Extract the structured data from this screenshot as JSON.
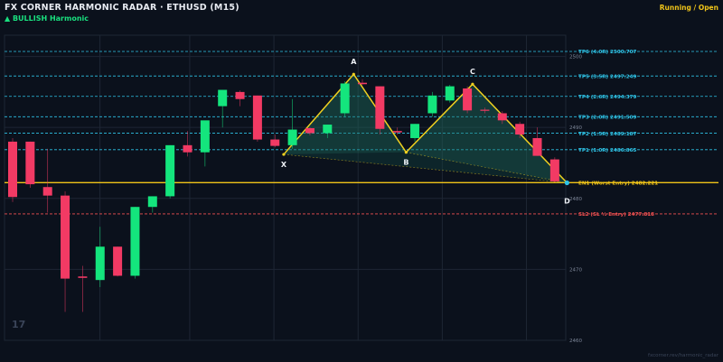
{
  "header": {
    "title": "FX CORNER HARMONIC RADAR  ·  ETHUSD (M15)",
    "subtitle": "▲ BULLISH  Harmonic",
    "status": "Running / Open"
  },
  "chart_data": {
    "type": "candlestick",
    "symbol": "ETHUSD",
    "timeframe": "M15",
    "ylim": [
      2460,
      2503
    ],
    "y_ticks": [
      {
        "value": 2500,
        "label": "2500"
      },
      {
        "value": 2490,
        "label": "2490"
      },
      {
        "value": 2480,
        "label": "2480"
      },
      {
        "value": 2470,
        "label": "2470"
      },
      {
        "value": 2460,
        "label": "2460"
      }
    ],
    "candles": [
      {
        "o": 2488.0,
        "h": 2488.5,
        "l": 2479.5,
        "c": 2480.2
      },
      {
        "o": 2488.0,
        "h": 2488.0,
        "l": 2481.5,
        "c": 2482.0
      },
      {
        "o": 2481.6,
        "h": 2487.0,
        "l": 2478.0,
        "c": 2480.4
      },
      {
        "o": 2480.4,
        "h": 2481.0,
        "l": 2464.0,
        "c": 2468.7
      },
      {
        "o": 2469.0,
        "h": 2470.5,
        "l": 2464.0,
        "c": 2468.8
      },
      {
        "o": 2468.5,
        "h": 2476.0,
        "l": 2467.5,
        "c": 2473.2
      },
      {
        "o": 2473.2,
        "h": 2473.2,
        "l": 2469.0,
        "c": 2469.1
      },
      {
        "o": 2469.1,
        "h": 2478.8,
        "l": 2468.7,
        "c": 2478.8
      },
      {
        "o": 2478.8,
        "h": 2480.3,
        "l": 2478.0,
        "c": 2480.3
      },
      {
        "o": 2480.3,
        "h": 2487.5,
        "l": 2480.0,
        "c": 2487.5
      },
      {
        "o": 2487.5,
        "h": 2489.5,
        "l": 2485.9,
        "c": 2486.5
      },
      {
        "o": 2486.5,
        "h": 2490.8,
        "l": 2484.5,
        "c": 2491.0
      },
      {
        "o": 2493.0,
        "h": 2495.3,
        "l": 2490.0,
        "c": 2495.3
      },
      {
        "o": 2495.0,
        "h": 2495.2,
        "l": 2493.0,
        "c": 2494.0
      },
      {
        "o": 2494.5,
        "h": 2494.5,
        "l": 2488.0,
        "c": 2488.3
      },
      {
        "o": 2488.3,
        "h": 2489.0,
        "l": 2487.2,
        "c": 2487.4
      },
      {
        "o": 2487.5,
        "h": 2494.0,
        "l": 2487.0,
        "c": 2489.7
      },
      {
        "o": 2489.9,
        "h": 2490.0,
        "l": 2488.9,
        "c": 2489.2
      },
      {
        "o": 2489.2,
        "h": 2490.4,
        "l": 2488.5,
        "c": 2490.4
      },
      {
        "o": 2492.0,
        "h": 2496.5,
        "l": 2491.5,
        "c": 2496.2
      },
      {
        "o": 2496.3,
        "h": 2496.8,
        "l": 2496.0,
        "c": 2496.1
      },
      {
        "o": 2495.8,
        "h": 2495.8,
        "l": 2489.0,
        "c": 2489.8
      },
      {
        "o": 2489.5,
        "h": 2490.0,
        "l": 2489.0,
        "c": 2489.3
      },
      {
        "o": 2488.5,
        "h": 2490.5,
        "l": 2488.0,
        "c": 2490.5
      },
      {
        "o": 2492.0,
        "h": 2495.0,
        "l": 2491.5,
        "c": 2494.5
      },
      {
        "o": 2493.8,
        "h": 2496.0,
        "l": 2493.5,
        "c": 2495.8
      },
      {
        "o": 2495.5,
        "h": 2495.8,
        "l": 2492.0,
        "c": 2492.4
      },
      {
        "o": 2492.5,
        "h": 2492.8,
        "l": 2492.0,
        "c": 2492.4
      },
      {
        "o": 2492.0,
        "h": 2492.3,
        "l": 2490.5,
        "c": 2491.0
      },
      {
        "o": 2490.5,
        "h": 2490.8,
        "l": 2488.5,
        "c": 2489.0
      },
      {
        "o": 2488.5,
        "h": 2490.0,
        "l": 2486.0,
        "c": 2486.0
      },
      {
        "o": 2485.5,
        "h": 2485.8,
        "l": 2482.3,
        "c": 2482.4
      }
    ],
    "pattern": {
      "name": "BULLISH Harmonic",
      "points": [
        {
          "label": "X",
          "candle": 15.5,
          "price": 2486.2
        },
        {
          "label": "A",
          "candle": 19.5,
          "price": 2497.5
        },
        {
          "label": "B",
          "candle": 22.5,
          "price": 2486.5
        },
        {
          "label": "C",
          "candle": 26.3,
          "price": 2496.1
        },
        {
          "label": "D",
          "candle": 31.7,
          "price": 2482.2
        }
      ],
      "fill_color": "#1c6b5c",
      "line_color": "#f0d020"
    },
    "levels": [
      {
        "name": "TP6",
        "label": "TP6 (4.0R)  2500.707",
        "price": 2500.707,
        "color": "#2ec3e6",
        "dash": true
      },
      {
        "name": "TP5",
        "label": "TP5 (3.5R)  2497.249",
        "price": 2497.249,
        "color": "#2ec3e6",
        "dash": true
      },
      {
        "name": "TP4",
        "label": "TP4 (2.6R)  2494.379",
        "price": 2494.379,
        "color": "#2ec3e6",
        "dash": true
      },
      {
        "name": "TP3",
        "label": "TP3 (2.0R)  2491.509",
        "price": 2491.509,
        "color": "#2ec3e6",
        "dash": true
      },
      {
        "name": "TP2",
        "label": "TP2 (1.5R)  2489.187",
        "price": 2489.187,
        "color": "#2ec3e6",
        "dash": true
      },
      {
        "name": "TP1",
        "label": "TP1 (1.0R)  2486.865",
        "price": 2486.865,
        "color": "#2ec3e6",
        "dash": true
      },
      {
        "name": "EN1",
        "label": "EN1 (Worst Entry)  2482.221",
        "price": 2482.221,
        "color": "#f0c419",
        "dash": false
      },
      {
        "name": "SL",
        "label": "SL2 (SL ½ Entry)  2477.818",
        "price": 2477.818,
        "color": "#f05050",
        "dash": true
      }
    ],
    "colors": {
      "background": "#0b111c",
      "grid": "#1e2634",
      "bull": "#14e57d",
      "bear": "#f23a64"
    }
  },
  "watermark": "17",
  "footer": "fxcorner.rev/harmonic_radar"
}
